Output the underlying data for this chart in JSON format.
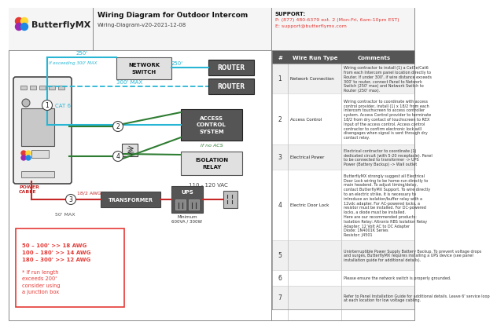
{
  "title": "Wiring Diagram for Outdoor Intercom",
  "subtitle": "Wiring-Diagram-v20-2021-12-08",
  "support_line1": "SUPPORT:",
  "support_line2": "P: (877) 480-6379 ext. 2 (Mon-Fri, 6am-10pm EST)",
  "support_line3": "E: support@butterflymx.com",
  "logo_text": "ButterflyMX",
  "bg_color": "#ffffff",
  "cyan_color": "#29b6d4",
  "green_color": "#2e7d32",
  "red_color": "#e53935",
  "dark_red": "#c62828",
  "wire_rows": [
    {
      "num": "1",
      "type": "Network Connection",
      "comment": "Wiring contractor to install (1) a Cat5e/Cat6\nfrom each Intercom panel location directly to\nRouter. If under 300', if wire distance exceeds\n300' to router, connect Panel to Network\nSwitch (250' max) and Network Switch to\nRouter (250' max)."
    },
    {
      "num": "2",
      "type": "Access Control",
      "comment": "Wiring contractor to coordinate with access\ncontrol provider, install (1) x 18/2 from each\nIntercom touchscreen to access controller\nsystem. Access Control provider to terminate\n18/2 from dry contact of touchscreen to REX\nInput of the access control. Access control\ncontractor to confirm electronic lock will\ndisengages when signal is sent through dry\ncontact relay."
    },
    {
      "num": "3",
      "type": "Electrical Power",
      "comment": "Electrical contractor to coordinate (1)\ndedicated circuit (with 5-20 receptacle). Panel\nto be connected to transformer -> UPS\nPower (Battery Backup) -> Wall outlet"
    },
    {
      "num": "4",
      "type": "Electric Door Lock",
      "comment": "ButterflyMX strongly suggest all Electrical\nDoor Lock wiring to be home-run directly to\nmain headend. To adjust timing/delay,\ncontact ButterflyMX Support. To wire directly\nto an electric strike, it is necessary to\nintroduce an isolation/buffer relay with a\n12vdc adapter. For AC-powered locks, a\nresistor must be installed. For DC-powered\nlocks, a diode must be installed.\nHere are our recommended products:\nIsolation Relay: Altronix RBS Isolation Relay\nAdapter: 12 Volt AC to DC Adapter\nDiode: 1N4001K Series\nResistor: J4501"
    },
    {
      "num": "5",
      "type": "",
      "comment": "Uninterruptible Power Supply Battery Backup. To prevent voltage drops\nand surges, ButterflyMX requires installing a UPS device (see panel\ninstallation guide for additional details)."
    },
    {
      "num": "6",
      "type": "",
      "comment": "Please ensure the network switch is properly grounded."
    },
    {
      "num": "7",
      "type": "",
      "comment": "Refer to Panel Installation Guide for additional details. Leave 6' service loop\nat each location for low voltage cabling."
    }
  ]
}
